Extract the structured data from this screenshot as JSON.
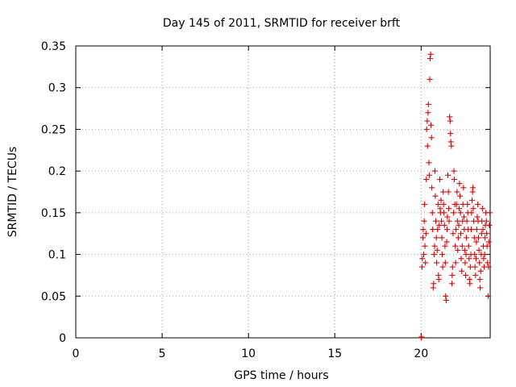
{
  "chart_data": {
    "type": "scatter",
    "title": "Day 145 of 2011, SRMTID for receiver brft",
    "xlabel": "GPS time / hours",
    "ylabel": "SRMTID / TECUs",
    "xlim": [
      0,
      24
    ],
    "ylim": [
      0,
      0.35
    ],
    "grid": true,
    "marker": "+",
    "series_color": "#e00000",
    "x_ticks": [
      "0",
      "5",
      "10",
      "15",
      "20"
    ],
    "y_ticks": [
      "0",
      "0.05",
      "0.1",
      "0.15",
      "0.2",
      "0.25",
      "0.3",
      "0.35"
    ],
    "x_tick_values": [
      0,
      5,
      10,
      15,
      20
    ],
    "y_tick_values": [
      0,
      0.05,
      0.1,
      0.15,
      0.2,
      0.25,
      0.3,
      0.35
    ],
    "series": [
      {
        "points": [
          [
            20.0,
            0.0
          ],
          [
            20.02,
            0.001
          ],
          [
            20.05,
            0.085
          ],
          [
            20.07,
            0.095
          ],
          [
            20.1,
            0.12
          ],
          [
            20.12,
            0.13
          ],
          [
            20.15,
            0.1
          ],
          [
            20.18,
            0.14
          ],
          [
            20.2,
            0.16
          ],
          [
            20.22,
            0.11
          ],
          [
            20.25,
            0.09
          ],
          [
            20.28,
            0.125
          ],
          [
            20.3,
            0.19
          ],
          [
            20.32,
            0.25
          ],
          [
            20.35,
            0.26
          ],
          [
            20.37,
            0.23
          ],
          [
            20.4,
            0.27
          ],
          [
            20.42,
            0.28
          ],
          [
            20.45,
            0.21
          ],
          [
            20.47,
            0.195
          ],
          [
            20.5,
            0.31
          ],
          [
            20.52,
            0.335
          ],
          [
            20.55,
            0.34
          ],
          [
            20.57,
            0.255
          ],
          [
            20.6,
            0.24
          ],
          [
            20.62,
            0.18
          ],
          [
            20.65,
            0.15
          ],
          [
            20.67,
            0.13
          ],
          [
            20.7,
            0.06
          ],
          [
            20.72,
            0.065
          ],
          [
            20.75,
            0.1
          ],
          [
            20.78,
            0.11
          ],
          [
            20.8,
            0.2
          ],
          [
            20.82,
            0.17
          ],
          [
            20.85,
            0.14
          ],
          [
            20.88,
            0.12
          ],
          [
            20.9,
            0.09
          ],
          [
            20.93,
            0.105
          ],
          [
            20.95,
            0.13
          ],
          [
            20.98,
            0.16
          ],
          [
            21.0,
            0.075
          ],
          [
            21.02,
            0.07
          ],
          [
            21.05,
            0.135
          ],
          [
            21.08,
            0.19
          ],
          [
            21.1,
            0.155
          ],
          [
            21.12,
            0.15
          ],
          [
            21.15,
            0.165
          ],
          [
            21.18,
            0.14
          ],
          [
            21.2,
            0.12
          ],
          [
            21.22,
            0.1
          ],
          [
            21.25,
            0.085
          ],
          [
            21.28,
            0.175
          ],
          [
            21.3,
            0.16
          ],
          [
            21.32,
            0.15
          ],
          [
            21.35,
            0.135
          ],
          [
            21.38,
            0.11
          ],
          [
            21.4,
            0.09
          ],
          [
            21.42,
            0.05
          ],
          [
            21.45,
            0.045
          ],
          [
            21.48,
            0.115
          ],
          [
            21.5,
            0.13
          ],
          [
            21.52,
            0.145
          ],
          [
            21.55,
            0.195
          ],
          [
            21.58,
            0.175
          ],
          [
            21.6,
            0.155
          ],
          [
            21.62,
            0.14
          ],
          [
            21.65,
            0.265
          ],
          [
            21.68,
            0.26
          ],
          [
            21.7,
            0.245
          ],
          [
            21.72,
            0.235
          ],
          [
            21.75,
            0.23
          ],
          [
            21.78,
            0.065
          ],
          [
            21.8,
            0.075
          ],
          [
            21.82,
            0.085
          ],
          [
            21.85,
            0.125
          ],
          [
            21.88,
            0.15
          ],
          [
            21.9,
            0.2
          ],
          [
            21.92,
            0.19
          ],
          [
            21.95,
            0.16
          ],
          [
            21.98,
            0.11
          ],
          [
            22.0,
            0.09
          ],
          [
            22.02,
            0.13
          ],
          [
            22.05,
            0.16
          ],
          [
            22.08,
            0.175
          ],
          [
            22.1,
            0.14
          ],
          [
            22.12,
            0.105
          ],
          [
            22.15,
            0.12
          ],
          [
            22.18,
            0.135
          ],
          [
            22.2,
            0.155
          ],
          [
            22.22,
            0.185
          ],
          [
            22.25,
            0.17
          ],
          [
            22.28,
            0.15
          ],
          [
            22.3,
            0.125
          ],
          [
            22.32,
            0.095
          ],
          [
            22.35,
            0.08
          ],
          [
            22.38,
            0.11
          ],
          [
            22.4,
            0.14
          ],
          [
            22.42,
            0.16
          ],
          [
            22.45,
            0.18
          ],
          [
            22.48,
            0.145
          ],
          [
            22.5,
            0.13
          ],
          [
            22.52,
            0.105
          ],
          [
            22.55,
            0.09
          ],
          [
            22.58,
            0.075
          ],
          [
            22.6,
            0.1
          ],
          [
            22.62,
            0.12
          ],
          [
            22.65,
            0.14
          ],
          [
            22.68,
            0.16
          ],
          [
            22.7,
            0.15
          ],
          [
            22.72,
            0.13
          ],
          [
            22.75,
            0.11
          ],
          [
            22.78,
            0.095
          ],
          [
            22.8,
            0.07
          ],
          [
            22.82,
            0.065
          ],
          [
            22.85,
            0.085
          ],
          [
            22.88,
            0.1
          ],
          [
            22.9,
            0.13
          ],
          [
            22.92,
            0.15
          ],
          [
            22.95,
            0.165
          ],
          [
            22.98,
            0.175
          ],
          [
            23.0,
            0.18
          ],
          [
            23.02,
            0.155
          ],
          [
            23.05,
            0.14
          ],
          [
            23.08,
            0.12
          ],
          [
            23.1,
            0.1
          ],
          [
            23.12,
            0.085
          ],
          [
            23.15,
            0.075
          ],
          [
            23.18,
            0.095
          ],
          [
            23.2,
            0.115
          ],
          [
            23.22,
            0.13
          ],
          [
            23.25,
            0.145
          ],
          [
            23.28,
            0.16
          ],
          [
            23.3,
            0.14
          ],
          [
            23.32,
            0.12
          ],
          [
            23.35,
            0.105
          ],
          [
            23.38,
            0.09
          ],
          [
            23.4,
            0.07
          ],
          [
            23.42,
            0.06
          ],
          [
            23.45,
            0.08
          ],
          [
            23.48,
            0.1
          ],
          [
            23.5,
            0.125
          ],
          [
            23.52,
            0.14
          ],
          [
            23.55,
            0.155
          ],
          [
            23.58,
            0.13
          ],
          [
            23.6,
            0.11
          ],
          [
            23.62,
            0.095
          ],
          [
            23.65,
            0.085
          ],
          [
            23.68,
            0.1
          ],
          [
            23.7,
            0.12
          ],
          [
            23.72,
            0.135
          ],
          [
            23.75,
            0.15
          ],
          [
            23.78,
            0.14
          ],
          [
            23.8,
            0.125
          ],
          [
            23.82,
            0.11
          ],
          [
            23.85,
            0.09
          ],
          [
            23.88,
            0.05
          ],
          [
            23.9,
            0.085
          ],
          [
            23.92,
            0.115
          ],
          [
            23.95,
            0.135
          ],
          [
            23.98,
            0.15
          ]
        ]
      }
    ]
  }
}
